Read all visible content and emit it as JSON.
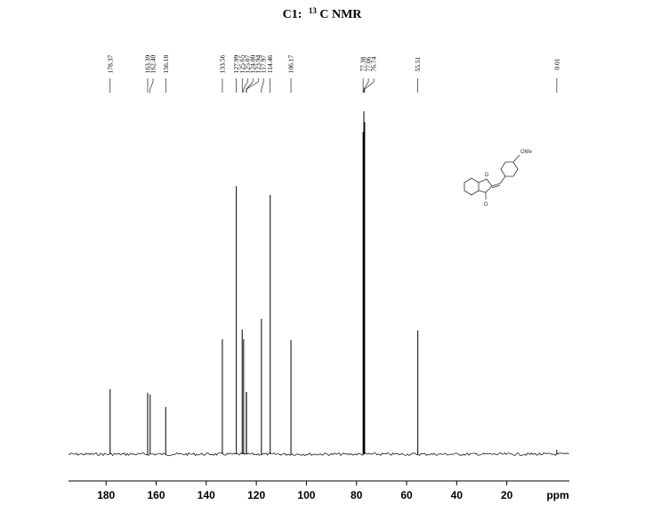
{
  "chart_data": {
    "type": "spectrum",
    "title": {
      "prefix": "C1:",
      "superscript": "13",
      "main": "C NMR"
    },
    "x": [
      178.37,
      163.39,
      162.4,
      156.18,
      133.56,
      127.99,
      125.65,
      125.07,
      124.0,
      123.94,
      117.97,
      114.46,
      106.17,
      77.38,
      77.06,
      76.74,
      55.51,
      0.01
    ],
    "x_labels": [
      "178.37",
      "163.39",
      "162.40",
      "156.18",
      "133.56",
      "127.99",
      "125.65",
      "125.07",
      "124.00",
      "123.94",
      "117.97",
      "114.46",
      "106.17",
      "77.38",
      "77.06",
      "76.74",
      "55.51",
      "0.01"
    ],
    "values": [
      73,
      69,
      67,
      53,
      129,
      301,
      140,
      129,
      70,
      70,
      152,
      291,
      128,
      362,
      385,
      373,
      139,
      5
    ],
    "color": "#000000",
    "xlim": [
      195,
      -5
    ],
    "xticks": [
      180,
      160,
      140,
      120,
      100,
      80,
      60,
      40,
      20
    ],
    "xlabel": "ppm",
    "annotation": "OMe"
  }
}
